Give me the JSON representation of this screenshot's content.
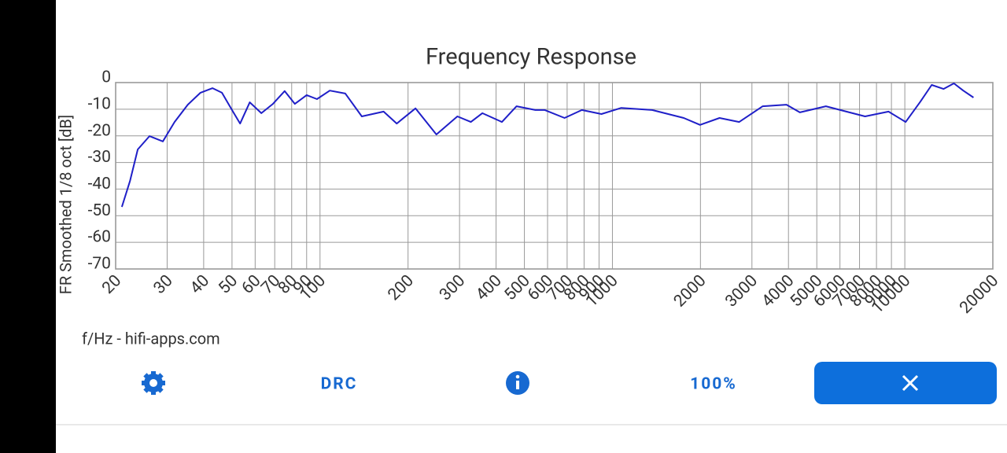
{
  "chart_data": {
    "type": "line",
    "title": "Frequency Response",
    "ylabel": "FR Smoothed 1/8 oct [dB]",
    "xlabel": "f/Hz - hifi-apps.com",
    "xscale": "log",
    "grid": true,
    "xlim": [
      20,
      20000
    ],
    "ylim": [
      -70,
      0
    ],
    "xticks": [
      20,
      30,
      40,
      50,
      60,
      70,
      80,
      90,
      100,
      200,
      300,
      400,
      500,
      600,
      700,
      800,
      900,
      1000,
      2000,
      3000,
      4000,
      5000,
      6000,
      7000,
      8000,
      9000,
      10000,
      20000
    ],
    "yticks": [
      0,
      -10,
      -20,
      -30,
      -40,
      -50,
      -60,
      -70
    ],
    "series": [
      {
        "name": "FR",
        "color": "#1f1fc8",
        "x": [
          21,
          22.4,
          23.8,
          26.1,
          29,
          31.8,
          35.3,
          39,
          42.9,
          46.2,
          50,
          53.3,
          57.5,
          63,
          69,
          75.7,
          82,
          90,
          97.6,
          108,
          122,
          139,
          165,
          183,
          212,
          250,
          295,
          328,
          359,
          419,
          470,
          545,
          587,
          686,
          786,
          917,
          1072,
          1368,
          1754,
          1993,
          2325,
          2714,
          3266,
          3938,
          4376,
          5372,
          6466,
          7312,
          8795,
          10070,
          11260,
          12360,
          13560,
          14720,
          15840,
          17170
        ],
        "values": [
          -46.7,
          -36.9,
          -25.1,
          -20.1,
          -22.1,
          -14.8,
          -8.3,
          -3.8,
          -2.1,
          -3.8,
          -10.3,
          -15.4,
          -7.4,
          -11.5,
          -8,
          -3.2,
          -8,
          -4.7,
          -6.2,
          -3,
          -4.1,
          -12.7,
          -10.9,
          -15.4,
          -9.7,
          -19.5,
          -12.7,
          -14.8,
          -11.5,
          -14.8,
          -8.9,
          -10.3,
          -10.3,
          -13.3,
          -10.3,
          -11.8,
          -9.5,
          -10.3,
          -13.3,
          -15.9,
          -13.3,
          -14.8,
          -8.9,
          -8.3,
          -11.2,
          -8.9,
          -11.2,
          -12.7,
          -10.9,
          -14.8,
          -7.4,
          -0.9,
          -2.4,
          -0.3,
          -3,
          -5.6
        ]
      }
    ]
  },
  "toolbar": {
    "drc": "DRC",
    "zoom": "100%"
  }
}
